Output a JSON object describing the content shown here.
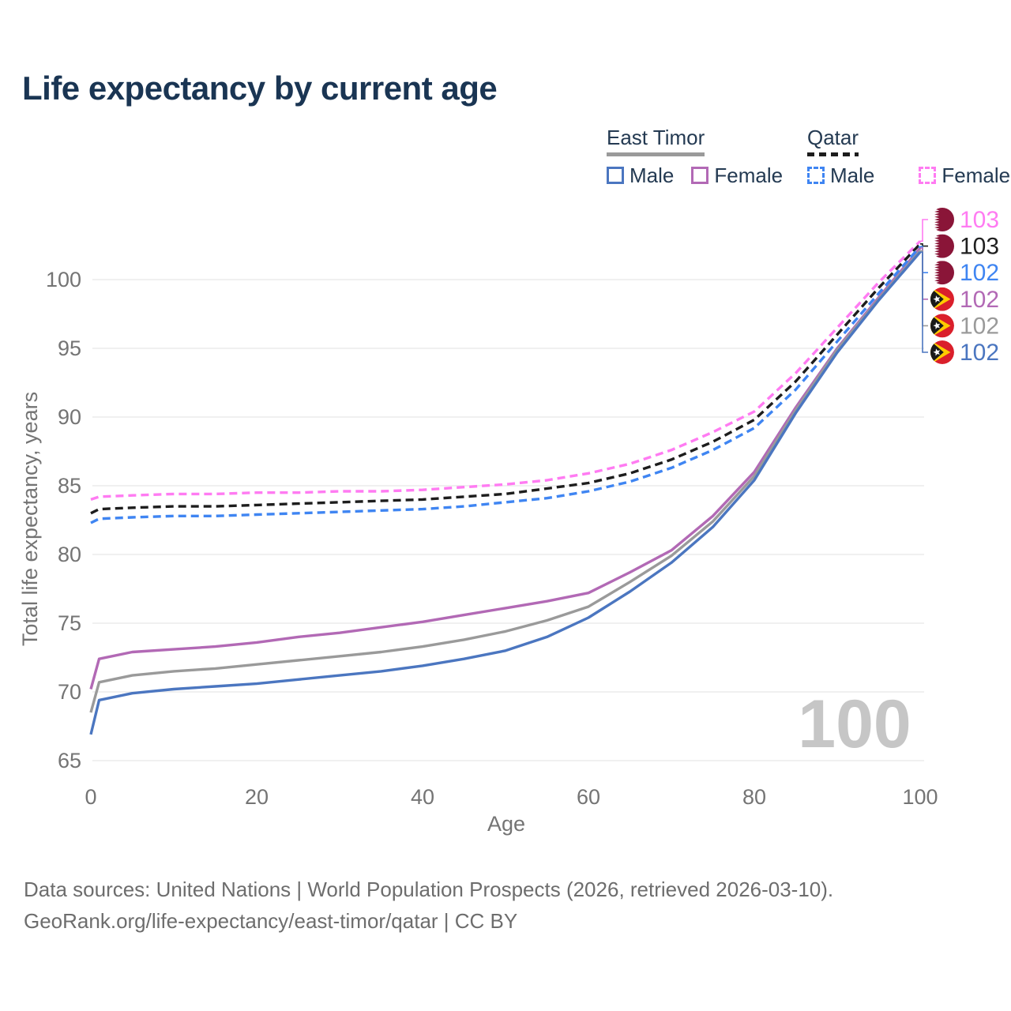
{
  "title": "Life expectancy by current age",
  "legend": {
    "groups": [
      {
        "id": "east-timor",
        "label": "East Timor",
        "underline": {
          "style": "solid",
          "color": "#9a9a9a"
        },
        "items": [
          {
            "label": "Male",
            "series": "east-timor-male"
          },
          {
            "label": "Female",
            "series": "east-timor-female"
          }
        ]
      },
      {
        "id": "qatar",
        "label": "Qatar",
        "underline": {
          "style": "dashed",
          "color": "#1d1d1d"
        },
        "items": [
          {
            "label": "Male",
            "series": "qatar-male"
          },
          {
            "label": "Female",
            "series": "qatar-female"
          }
        ]
      }
    ]
  },
  "chart_data": {
    "type": "line",
    "title": "Life expectancy by current age",
    "xlabel": "Age",
    "ylabel": "Total life expectancy, years",
    "xlim": [
      0,
      100
    ],
    "ylim": [
      65,
      103.5
    ],
    "xticks": [
      0,
      20,
      40,
      60,
      80,
      100
    ],
    "yticks": [
      65,
      70,
      75,
      80,
      85,
      90,
      95,
      100
    ],
    "grid": "horizontal",
    "gridcolor": "#e8e8e8",
    "watermark": "100",
    "watermark_color": "#c6c6c6",
    "x": [
      0,
      1,
      5,
      10,
      15,
      20,
      25,
      30,
      35,
      40,
      45,
      50,
      55,
      60,
      65,
      70,
      75,
      80,
      85,
      90,
      95,
      100
    ],
    "series": [
      {
        "id": "east-timor-female",
        "name": "East Timor Female",
        "color": "#b269b5",
        "dashed": false,
        "values": [
          70.2,
          72.4,
          72.9,
          73.1,
          73.3,
          73.6,
          74.0,
          74.3,
          74.7,
          75.1,
          75.6,
          76.1,
          76.6,
          77.2,
          78.7,
          80.3,
          82.8,
          86.0,
          90.7,
          95.0,
          98.7,
          102.3
        ]
      },
      {
        "id": "east-timor-both",
        "name": "East Timor Both sexes",
        "color": "#9a9a9a",
        "dashed": false,
        "values": [
          68.5,
          70.7,
          71.2,
          71.5,
          71.7,
          72.0,
          72.3,
          72.6,
          72.9,
          73.3,
          73.8,
          74.4,
          75.2,
          76.2,
          78.0,
          79.9,
          82.4,
          85.7,
          90.5,
          94.9,
          98.6,
          102.1
        ]
      },
      {
        "id": "east-timor-male",
        "name": "East Timor Male",
        "color": "#4b76c0",
        "dashed": false,
        "values": [
          66.9,
          69.4,
          69.9,
          70.2,
          70.4,
          70.6,
          70.9,
          71.2,
          71.5,
          71.9,
          72.4,
          73.0,
          74.0,
          75.4,
          77.3,
          79.4,
          82.0,
          85.4,
          90.3,
          94.7,
          98.5,
          102.0
        ]
      },
      {
        "id": "qatar-female",
        "name": "Qatar Female",
        "color": "#ff7bf2",
        "dashed": true,
        "values": [
          84.0,
          84.2,
          84.3,
          84.4,
          84.4,
          84.5,
          84.5,
          84.6,
          84.6,
          84.7,
          84.9,
          85.1,
          85.4,
          85.9,
          86.6,
          87.6,
          88.9,
          90.4,
          93.2,
          96.5,
          99.8,
          102.8
        ]
      },
      {
        "id": "qatar-both",
        "name": "Qatar Both sexes",
        "color": "#1d1d1d",
        "dashed": true,
        "values": [
          83.0,
          83.3,
          83.4,
          83.5,
          83.5,
          83.6,
          83.7,
          83.8,
          83.9,
          84.0,
          84.2,
          84.4,
          84.8,
          85.2,
          85.9,
          86.9,
          88.2,
          89.8,
          92.6,
          96.0,
          99.4,
          102.6
        ]
      },
      {
        "id": "qatar-male",
        "name": "Qatar Male",
        "color": "#3f85f2",
        "dashed": true,
        "values": [
          82.3,
          82.6,
          82.7,
          82.8,
          82.8,
          82.9,
          83.0,
          83.1,
          83.2,
          83.3,
          83.5,
          83.8,
          84.1,
          84.6,
          85.3,
          86.3,
          87.6,
          89.2,
          92.0,
          95.5,
          99.0,
          102.4
        ]
      }
    ],
    "right_labels": [
      {
        "series": "qatar-female",
        "flag": "qatar",
        "text": "103",
        "text_color": "#ff7bf2"
      },
      {
        "series": "qatar-both",
        "flag": "qatar",
        "text": "103",
        "text_color": "#1f1f1f"
      },
      {
        "series": "qatar-male",
        "flag": "qatar",
        "text": "102",
        "text_color": "#3f85f2"
      },
      {
        "series": "east-timor-female",
        "flag": "east-timor",
        "text": "102",
        "text_color": "#b269b5"
      },
      {
        "series": "east-timor-both",
        "flag": "east-timor",
        "text": "102",
        "text_color": "#9a9a9a"
      },
      {
        "series": "east-timor-male",
        "flag": "east-timor",
        "text": "102",
        "text_color": "#4b76c0"
      }
    ],
    "flag_colors": {
      "qatar": {
        "maroon": "#8a1538",
        "white": "#ffffff"
      },
      "east-timor": {
        "red": "#da1f2b",
        "yellow": "#ffcb00",
        "black": "#1a1a1a",
        "star": "#ffffff"
      }
    }
  },
  "axis_text_color": "#747474",
  "footer": {
    "line1": "Data sources: United Nations | World Population Prospects (2026, retrieved 2026-03-10).",
    "line2": "GeoRank.org/life-expectancy/east-timor/qatar | CC BY"
  }
}
